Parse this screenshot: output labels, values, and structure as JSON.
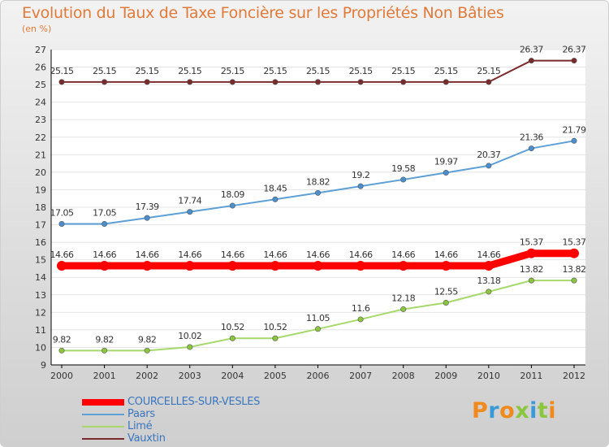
{
  "header": {
    "title": "Evolution du Taux de Taxe Foncière sur les Propriétés Non Bâties",
    "unit": "(en %)"
  },
  "logo": {
    "text": "Proxiti"
  },
  "legend": {
    "items": [
      {
        "label": "COURCELLES-SUR-VESLES",
        "color": "#ff0000"
      },
      {
        "label": "Paars",
        "color": "#5e9fd4"
      },
      {
        "label": "Limé",
        "color": "#a6d86c"
      },
      {
        "label": "Vauxtin",
        "color": "#7a2a2a"
      }
    ]
  },
  "chart_data": {
    "type": "line",
    "title": "Evolution du Taux de Taxe Foncière sur les Propriétés Non Bâties",
    "ylabel": "(en %)",
    "xlabel": "",
    "categories": [
      "2000",
      "2001",
      "2002",
      "2003",
      "2004",
      "2005",
      "2006",
      "2007",
      "2008",
      "2009",
      "2010",
      "2011",
      "2012"
    ],
    "ylim": [
      9,
      27
    ],
    "yticks": [
      "9",
      "10",
      "11",
      "12",
      "13",
      "14",
      "15",
      "16",
      "17",
      "18",
      "19",
      "20",
      "21",
      "22",
      "23",
      "24",
      "25",
      "26",
      "27"
    ],
    "grid": "horizontal",
    "series": [
      {
        "name": "Vauxtin",
        "color": "#7a2a2a",
        "marker_color": "#7a2a2a",
        "values": [
          25.15,
          25.15,
          25.15,
          25.15,
          25.15,
          25.15,
          25.15,
          25.15,
          25.15,
          25.15,
          25.15,
          26.37,
          26.37
        ],
        "labels": [
          "25.15",
          "25.15",
          "25.15",
          "25.15",
          "25.15",
          "25.15",
          "25.15",
          "25.15",
          "25.15",
          "25.15",
          "25.15",
          "26.37",
          "26.37"
        ]
      },
      {
        "name": "Paars",
        "color": "#5e9fd4",
        "marker_color": "#4a8fd0",
        "values": [
          17.05,
          17.05,
          17.39,
          17.74,
          18.09,
          18.45,
          18.82,
          19.2,
          19.58,
          19.97,
          20.37,
          21.36,
          21.79
        ],
        "labels": [
          "17.05",
          "17.05",
          "17.39",
          "17.74",
          "18.09",
          "18.45",
          "18.82",
          "19.2",
          "19.58",
          "19.97",
          "20.37",
          "21.36",
          "21.79"
        ]
      },
      {
        "name": "COURCELLES-SUR-VESLES",
        "color": "#ff0000",
        "marker_color": "#ff0000",
        "values": [
          14.66,
          14.66,
          14.66,
          14.66,
          14.66,
          14.66,
          14.66,
          14.66,
          14.66,
          14.66,
          14.66,
          15.37,
          15.37
        ],
        "labels": [
          "14.66",
          "14.66",
          "14.66",
          "14.66",
          "14.66",
          "14.66",
          "14.66",
          "14.66",
          "14.66",
          "14.66",
          "14.66",
          "15.37",
          "15.37"
        ]
      },
      {
        "name": "Limé",
        "color": "#a6d86c",
        "marker_color": "#8cc63f",
        "values": [
          9.82,
          9.82,
          9.82,
          10.02,
          10.52,
          10.52,
          11.05,
          11.6,
          12.18,
          12.55,
          13.18,
          13.82,
          13.82
        ],
        "labels": [
          "9.82",
          "9.82",
          "9.82",
          "10.02",
          "10.52",
          "10.52",
          "11.05",
          "11.6",
          "12.18",
          "12.55",
          "13.18",
          "13.82",
          "13.82"
        ]
      }
    ]
  }
}
